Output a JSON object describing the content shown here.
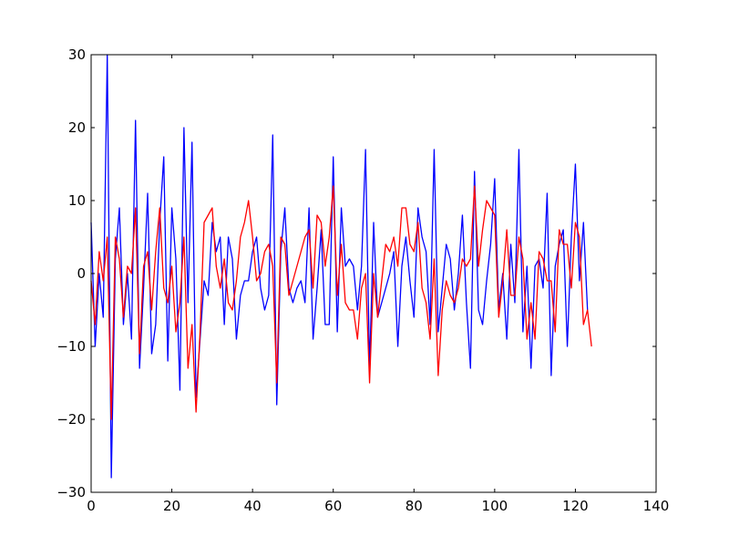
{
  "chart_data": {
    "type": "line",
    "title": "",
    "xlabel": "",
    "ylabel": "",
    "xlim": [
      0,
      140
    ],
    "ylim": [
      -30,
      30
    ],
    "xticks": [
      0,
      20,
      40,
      60,
      80,
      100,
      120,
      140
    ],
    "yticks": [
      -30,
      -20,
      -10,
      0,
      10,
      20,
      30
    ],
    "xtick_labels": [
      "0",
      "20",
      "40",
      "60",
      "80",
      "100",
      "120",
      "140"
    ],
    "ytick_labels": [
      "−30",
      "−20",
      "−10",
      "0",
      "10",
      "20",
      "30"
    ],
    "grid": false,
    "legend": "none",
    "series": [
      {
        "color": "#0000ff",
        "x_start": 0,
        "x_step": 1,
        "values": [
          7,
          -10,
          0,
          -6,
          30,
          -28,
          2,
          9,
          -7,
          0,
          -9,
          21,
          -13,
          -2,
          11,
          -11,
          -7,
          7,
          16,
          -12,
          9,
          2,
          -16,
          20,
          -4,
          18,
          -17,
          -9,
          -1,
          -3,
          7,
          3,
          5,
          -7,
          5,
          2,
          -9,
          -3,
          -1,
          -1,
          3,
          5,
          -2,
          -5,
          -3,
          19,
          -18,
          3,
          9,
          -2,
          -4,
          -2,
          -1,
          -4,
          9,
          -9,
          -2,
          6,
          -7,
          -7,
          16,
          -8,
          9,
          1,
          2,
          1,
          -5,
          1,
          17,
          -13,
          7,
          -6,
          -4,
          -2,
          0,
          3,
          -10,
          1,
          5,
          -1,
          -6,
          9,
          5,
          3,
          -7,
          17,
          -8,
          -2,
          4,
          2,
          -5,
          0,
          8,
          -4,
          -13,
          14,
          -5,
          -7,
          -1,
          4,
          13,
          -5,
          0,
          -9,
          4,
          -4,
          17,
          -8,
          1,
          -13,
          1,
          2,
          -2,
          11,
          -14,
          1,
          4,
          6,
          -10,
          5,
          15,
          -1,
          7,
          -5
        ]
      },
      {
        "color": "#ff0000",
        "x_start": 0,
        "x_step": 1,
        "values": [
          -1,
          -7,
          3,
          -1,
          5,
          -20,
          5,
          2,
          -6,
          1,
          0,
          9,
          -11,
          1,
          3,
          -5,
          3,
          9,
          -2,
          -4,
          1,
          -8,
          -4,
          5,
          -13,
          -7,
          -19,
          -8,
          7,
          8,
          9,
          1,
          -2,
          2,
          -4,
          -5,
          -1,
          5,
          7,
          10,
          5,
          -1,
          0,
          3,
          4,
          1,
          -15,
          5,
          4,
          -3,
          -1,
          1,
          3,
          5,
          6,
          -2,
          8,
          7,
          1,
          5,
          12,
          -3,
          4,
          -4,
          -5,
          -5,
          -9,
          -2,
          0,
          -15,
          0,
          -6,
          -1,
          4,
          3,
          5,
          1,
          9,
          9,
          4,
          3,
          7,
          -2,
          -4,
          -9,
          2,
          -14,
          -5,
          -1,
          -3,
          -4,
          -2,
          2,
          1,
          2,
          12,
          1,
          6,
          10,
          9,
          8,
          -6,
          -1,
          6,
          -3,
          -3,
          5,
          2,
          -9,
          -4,
          -9,
          3,
          2,
          -1,
          -1,
          -8,
          6,
          4,
          4,
          -2,
          7,
          5,
          -7,
          -5,
          -10
        ]
      }
    ]
  }
}
